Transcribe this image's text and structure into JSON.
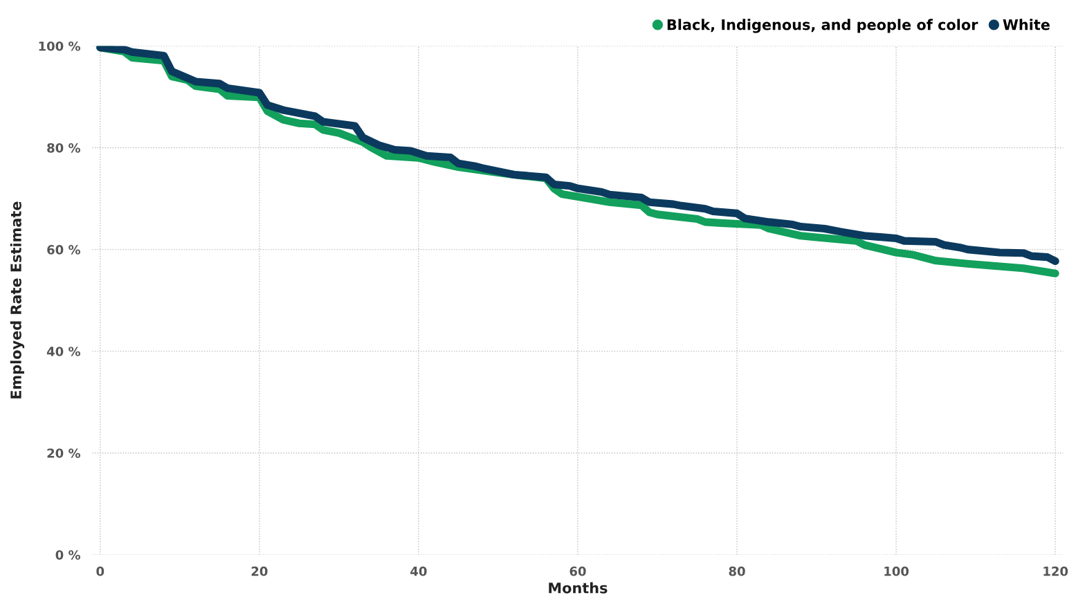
{
  "chart_data": {
    "type": "line",
    "xlabel": "Months",
    "ylabel": "Employed Rate Estimate",
    "legend": "top right",
    "grid": true,
    "line_style": "solid",
    "xlim": [
      -1,
      121
    ],
    "xticks": [
      0,
      20,
      40,
      60,
      80,
      100,
      120
    ],
    "ylim": [
      0,
      100
    ],
    "yticks": [
      {
        "value": 0,
        "label": "0 %"
      },
      {
        "value": 20,
        "label": "20 %"
      },
      {
        "value": 40,
        "label": "40 %"
      },
      {
        "value": 60,
        "label": "60 %"
      },
      {
        "value": 80,
        "label": "80 %"
      },
      {
        "value": 100,
        "label": "100 %"
      }
    ],
    "series": [
      {
        "name": "Black, Indigenous, and people of color",
        "color": "#12a05c",
        "x": [
          0,
          3,
          4,
          8,
          9,
          11,
          12,
          15,
          16,
          20,
          21,
          23,
          25,
          27,
          28,
          30,
          33,
          34,
          36,
          40,
          42,
          45,
          49,
          53,
          56,
          57,
          58,
          61,
          64,
          68,
          69,
          70,
          75,
          76,
          78,
          83,
          84,
          88,
          90,
          95,
          96,
          100,
          102,
          105,
          109,
          116,
          120
        ],
        "values": [
          99.7,
          98.9,
          97.7,
          97.1,
          94,
          93.3,
          92.1,
          91.5,
          90.2,
          89.9,
          87.2,
          85.5,
          84.8,
          84.6,
          83.5,
          82.9,
          81.1,
          80.1,
          78.4,
          78,
          77.2,
          76.2,
          75.3,
          74.5,
          74,
          72,
          70.9,
          70.1,
          69.3,
          68.7,
          67.3,
          66.9,
          66,
          65.4,
          65.2,
          64.8,
          64.1,
          62.7,
          62.4,
          61.7,
          60.9,
          59.4,
          59,
          57.8,
          57.2,
          56.3,
          55.3
        ]
      },
      {
        "name": "White",
        "color": "#0b3a5e",
        "x": [
          0,
          3,
          4,
          8,
          9,
          12,
          15,
          16,
          20,
          21,
          23,
          27,
          28,
          32,
          33,
          35,
          37,
          39,
          41,
          44,
          45,
          47,
          48,
          52,
          56,
          57,
          59,
          60,
          63,
          64,
          68,
          69,
          72,
          73,
          76,
          77,
          80,
          81,
          84,
          87,
          88,
          91,
          93,
          96,
          100,
          101,
          105,
          106,
          108,
          109,
          113,
          116,
          117,
          119,
          120
        ],
        "values": [
          99.7,
          99.3,
          98.8,
          98.1,
          95,
          93,
          92.6,
          91.7,
          90.8,
          88.4,
          87.4,
          86.2,
          85.1,
          84.3,
          82,
          80.5,
          79.6,
          79.4,
          78.4,
          78.1,
          76.9,
          76.4,
          76,
          74.7,
          74.2,
          72.8,
          72.5,
          72,
          71.3,
          70.8,
          70.2,
          69.3,
          68.9,
          68.6,
          68,
          67.5,
          67.1,
          66.1,
          65.4,
          64.9,
          64.5,
          64.1,
          63.5,
          62.7,
          62.2,
          61.7,
          61.5,
          60.9,
          60.4,
          60,
          59.4,
          59.3,
          58.7,
          58.5,
          57.7
        ]
      }
    ]
  }
}
